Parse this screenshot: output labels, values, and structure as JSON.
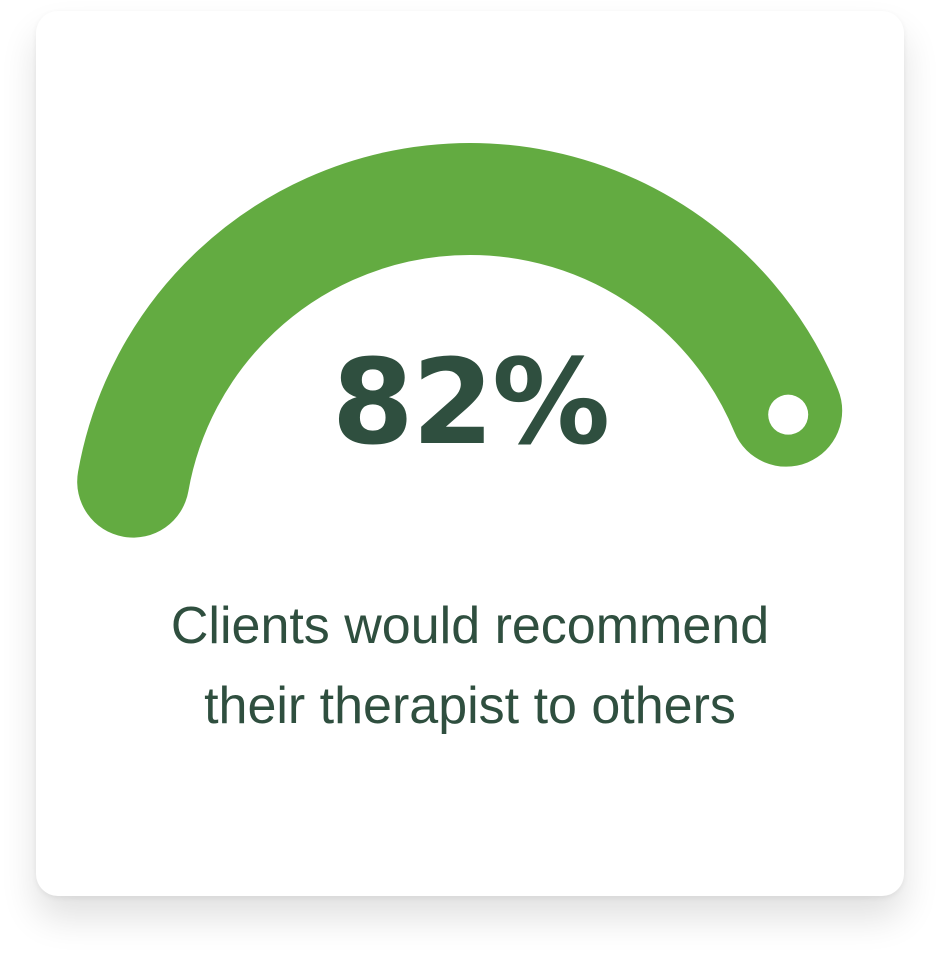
{
  "chart_data": {
    "type": "gauge",
    "value": 82,
    "max": 100,
    "value_label": "82%",
    "caption": "Clients would recommend their therapist to others",
    "colors": {
      "arc": "#63ab41",
      "text": "#2f4f3f",
      "marker": "#ffffff",
      "background": "#ffffff"
    }
  }
}
